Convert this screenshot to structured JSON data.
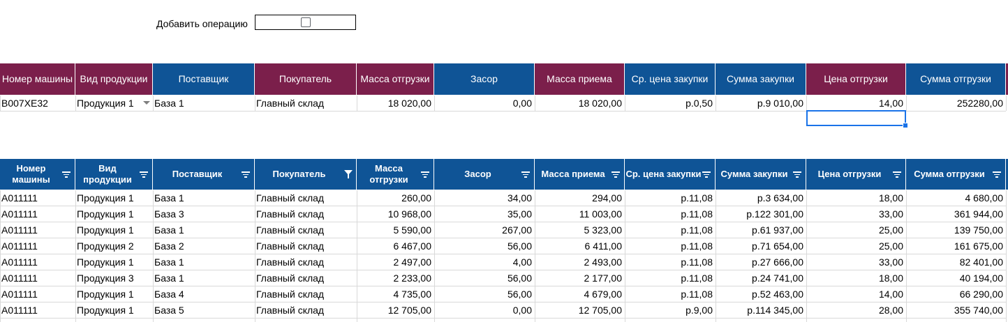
{
  "add_operation": {
    "label": "Добавить операцию",
    "checked": false
  },
  "entry_table": {
    "headers": [
      "Номер машины",
      "Вид продукции",
      "Поставщик",
      "Покупатель",
      "Масса отгрузки",
      "Засор",
      "Масса приема",
      "Ср. цена закупки",
      "Сумма закупки",
      "Цена отгрузки",
      "Сумма отгрузки"
    ],
    "header_colors": [
      "#7b1f4b",
      "#7b1f4b",
      "#0f5496",
      "#7b1f4b",
      "#7b1f4b",
      "#0f5496",
      "#7b1f4b",
      "#0f5496",
      "#0f5496",
      "#7b1f4b",
      "#0f5496"
    ],
    "row": [
      "В007ХЕ32",
      "Продукция 1",
      "База 1",
      "Главный склад",
      "18 020,00",
      "0,00",
      "18 020,00",
      "р.0,50",
      "р.9 010,00",
      "14,00",
      "252280,00"
    ]
  },
  "data_table": {
    "headers": [
      "Номер машины",
      "Вид продукции",
      "Поставщик",
      "Покупатель",
      "Масса отгрузки",
      "Засор",
      "Масса приема",
      "Ср. цена закупки",
      "Сумма закупки",
      "Цена отгрузки",
      "Сумма отгрузки"
    ],
    "rows": [
      [
        "А011111",
        "Продукция 1",
        "База 1",
        "Главный склад",
        "260,00",
        "34,00",
        "294,00",
        "р.11,08",
        "р.3 634,00",
        "18,00",
        "4 680,00"
      ],
      [
        "А011111",
        "Продукция 1",
        "База 3",
        "Главный склад",
        "10 968,00",
        "35,00",
        "11 003,00",
        "р.11,08",
        "р.122 301,00",
        "33,00",
        "361 944,00"
      ],
      [
        "А011111",
        "Продукция 1",
        "База 1",
        "Главный склад",
        "5 590,00",
        "267,00",
        "5 323,00",
        "р.11,08",
        "р.61 937,00",
        "25,00",
        "139 750,00"
      ],
      [
        "А011111",
        "Продукция 2",
        "База 2",
        "Главный склад",
        "6 467,00",
        "56,00",
        "6 411,00",
        "р.11,08",
        "р.71 654,00",
        "25,00",
        "161 675,00"
      ],
      [
        "А011111",
        "Продукция 1",
        "База 1",
        "Главный склад",
        "2 497,00",
        "4,00",
        "2 493,00",
        "р.11,08",
        "р.27 666,00",
        "33,00",
        "82 401,00"
      ],
      [
        "А011111",
        "Продукция 3",
        "База 1",
        "Главный склад",
        "2 233,00",
        "56,00",
        "2 177,00",
        "р.11,08",
        "р.24 741,00",
        "18,00",
        "40 194,00"
      ],
      [
        "А011111",
        "Продукция 1",
        "База 4",
        "Главный склад",
        "4 735,00",
        "56,00",
        "4 679,00",
        "р.11,08",
        "р.52 463,00",
        "14,00",
        "66 290,00"
      ],
      [
        "А011111",
        "Продукция 1",
        "База 5",
        "Главный склад",
        "12 705,00",
        "0,00",
        "12 705,00",
        "р.9,00",
        "р.114 345,00",
        "28,00",
        "355 740,00"
      ]
    ]
  },
  "icons": {
    "checkbox": "checkbox-icon",
    "filter": "filter-icon",
    "funnel": "funnel-active-icon",
    "dropdown": "dropdown-arrow-icon"
  },
  "colors": {
    "header_blue": "#0f5496",
    "header_maroon": "#7b1f4b",
    "selection": "#1a73e8",
    "grid": "#d9d9d9"
  }
}
